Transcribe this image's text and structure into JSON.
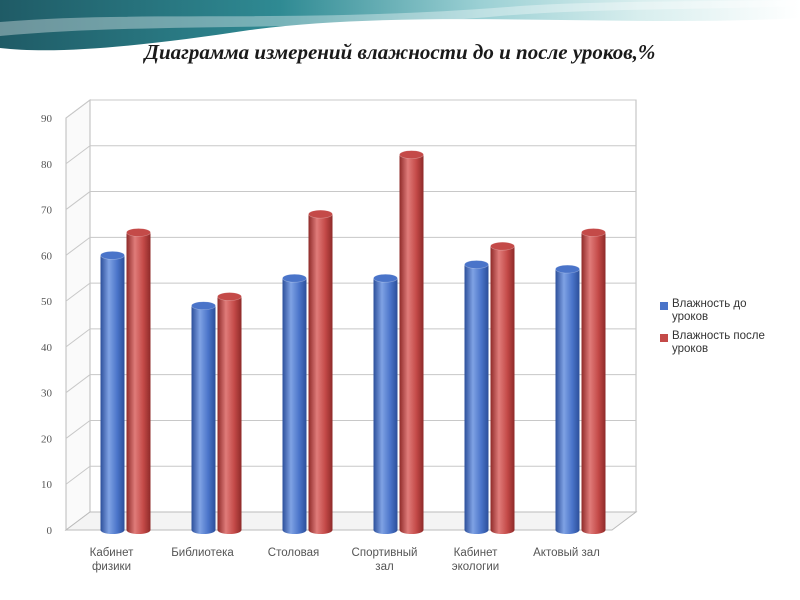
{
  "title": "Диаграмма измерений влажности до и после уроков,%",
  "colors": {
    "before": "#4a74c9",
    "after": "#c44a48"
  },
  "chart_data": {
    "type": "bar",
    "categories": [
      [
        "Кабинет",
        "физики"
      ],
      [
        "Библиотека"
      ],
      [
        "Столовая"
      ],
      [
        "Спортивный",
        "зал"
      ],
      [
        "Кабинет",
        "экологии"
      ],
      [
        "Актовый зал"
      ]
    ],
    "series": [
      {
        "name": "Влажность до уроков",
        "values": [
          60,
          49,
          55,
          55,
          58,
          57
        ]
      },
      {
        "name": "Влажность после уроков",
        "values": [
          65,
          51,
          69,
          82,
          62,
          65
        ]
      }
    ],
    "ylim": [
      0,
      90
    ],
    "yticks": [
      "0",
      "10",
      "20",
      "30",
      "40",
      "50",
      "60",
      "70",
      "80",
      "90"
    ],
    "grid": true,
    "legend_position": "right"
  },
  "legend": {
    "items": [
      {
        "label": "Влажность до уроков"
      },
      {
        "label": "Влажность после уроков"
      }
    ]
  }
}
